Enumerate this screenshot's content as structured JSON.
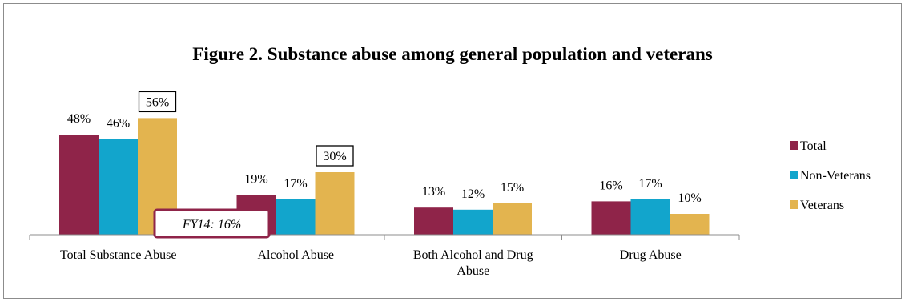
{
  "chart_data": {
    "type": "bar",
    "title": "Figure 2. Substance abuse among general population and veterans",
    "xlabel": "",
    "ylabel": "",
    "ylim": [
      0,
      60
    ],
    "grid": false,
    "legend_position": "right",
    "categories": [
      [
        "Total Substance Abuse"
      ],
      [
        "Alcohol Abuse"
      ],
      [
        "Both Alcohol and Drug",
        "Abuse"
      ],
      [
        "Drug Abuse"
      ]
    ],
    "series": [
      {
        "name": "Total",
        "color": "#8f2449",
        "values": [
          48,
          19,
          13,
          16
        ],
        "labels": [
          "48%",
          "19%",
          "13%",
          "16%"
        ]
      },
      {
        "name": "Non-Veterans",
        "color": "#12a5cc",
        "values": [
          46,
          17,
          12,
          17
        ],
        "labels": [
          "46%",
          "17%",
          "12%",
          "17%"
        ]
      },
      {
        "name": "Veterans",
        "color": "#e3b44f",
        "values": [
          56,
          30,
          15,
          10
        ],
        "labels": [
          "56%",
          "30%",
          "15%",
          "10%"
        ]
      }
    ],
    "boxed_labels": [
      {
        "series": 2,
        "category": 0
      },
      {
        "series": 2,
        "category": 1
      }
    ],
    "annotation": {
      "text": "FY14: 16%",
      "border_color": "#8f2449"
    },
    "axis_color": "#8c8c8c"
  }
}
